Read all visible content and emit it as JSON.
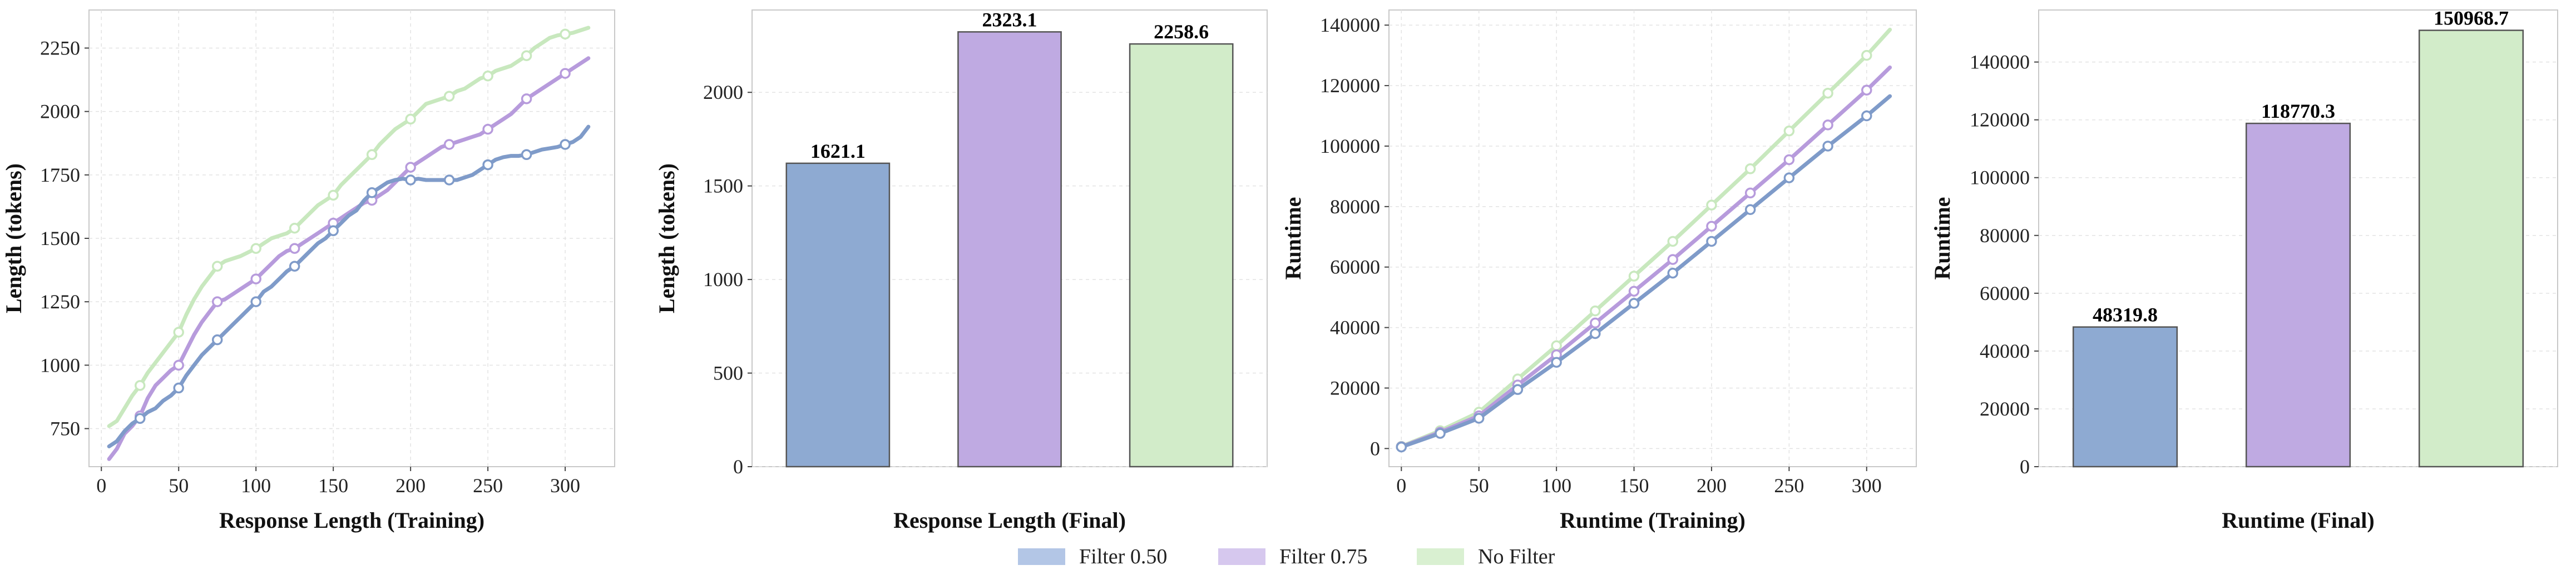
{
  "colors": {
    "filter_050": "#8eaad2",
    "filter_075": "#bfaae2",
    "no_filter": "#d2ecc9",
    "filter_050_line": "#7f9bc9",
    "filter_075_line": "#b79bdc",
    "no_filter_line": "#c8e8be"
  },
  "legend": {
    "items": [
      {
        "label": "Filter 0.50",
        "color": "#b3c6e6"
      },
      {
        "label": "Filter 0.75",
        "color": "#d6c8ee"
      },
      {
        "label": "No Filter",
        "color": "#d9f0d1"
      }
    ]
  },
  "chart_data": [
    {
      "type": "line",
      "xlabel": "Response Length (Training)",
      "ylabel": "Length (tokens)",
      "xlim": [
        -8,
        332
      ],
      "ylim": [
        600,
        2400
      ],
      "xticks": [
        0,
        50,
        100,
        150,
        200,
        250,
        300
      ],
      "yticks": [
        750,
        1000,
        1250,
        1500,
        1750,
        2000,
        2250
      ],
      "grid": true,
      "series": [
        {
          "name": "Filter 0.50",
          "x": [
            5,
            10,
            15,
            20,
            25,
            30,
            35,
            40,
            45,
            50,
            55,
            60,
            65,
            70,
            75,
            80,
            85,
            90,
            95,
            100,
            105,
            110,
            115,
            120,
            125,
            130,
            135,
            140,
            145,
            150,
            155,
            160,
            165,
            170,
            175,
            180,
            185,
            190,
            195,
            200,
            205,
            210,
            215,
            220,
            225,
            230,
            235,
            240,
            245,
            250,
            255,
            260,
            265,
            270,
            275,
            280,
            285,
            290,
            295,
            300,
            305,
            310,
            315
          ],
          "y": [
            680,
            700,
            740,
            770,
            790,
            815,
            830,
            860,
            880,
            910,
            960,
            1000,
            1040,
            1070,
            1100,
            1130,
            1160,
            1190,
            1220,
            1250,
            1290,
            1310,
            1340,
            1370,
            1390,
            1420,
            1450,
            1480,
            1500,
            1530,
            1560,
            1590,
            1610,
            1650,
            1680,
            1700,
            1720,
            1730,
            1735,
            1730,
            1735,
            1730,
            1730,
            1730,
            1730,
            1730,
            1740,
            1750,
            1770,
            1790,
            1810,
            1820,
            1825,
            1825,
            1830,
            1840,
            1850,
            1855,
            1860,
            1870,
            1880,
            1900,
            1940
          ],
          "markers_x": [
            25,
            50,
            75,
            100,
            125,
            150,
            175,
            200,
            225,
            250,
            275,
            300
          ]
        },
        {
          "name": "Filter 0.75",
          "x": [
            5,
            10,
            15,
            20,
            25,
            30,
            35,
            40,
            45,
            50,
            55,
            60,
            65,
            70,
            75,
            80,
            85,
            90,
            95,
            100,
            105,
            110,
            115,
            120,
            125,
            130,
            135,
            140,
            145,
            150,
            155,
            160,
            165,
            170,
            175,
            180,
            185,
            190,
            195,
            200,
            205,
            210,
            215,
            220,
            225,
            230,
            235,
            240,
            245,
            250,
            255,
            260,
            265,
            270,
            275,
            280,
            285,
            290,
            295,
            300,
            305,
            310,
            315
          ],
          "y": [
            630,
            670,
            730,
            760,
            800,
            870,
            920,
            950,
            980,
            1000,
            1060,
            1120,
            1170,
            1210,
            1250,
            1260,
            1280,
            1300,
            1320,
            1340,
            1370,
            1400,
            1430,
            1450,
            1460,
            1480,
            1500,
            1520,
            1540,
            1560,
            1580,
            1600,
            1620,
            1640,
            1650,
            1670,
            1690,
            1720,
            1750,
            1780,
            1800,
            1820,
            1840,
            1860,
            1870,
            1880,
            1890,
            1900,
            1910,
            1930,
            1950,
            1970,
            1990,
            2020,
            2050,
            2070,
            2090,
            2110,
            2130,
            2150,
            2170,
            2190,
            2210
          ],
          "markers_x": [
            25,
            50,
            75,
            100,
            125,
            150,
            175,
            200,
            225,
            250,
            275,
            300
          ]
        },
        {
          "name": "No Filter",
          "x": [
            5,
            10,
            15,
            20,
            25,
            30,
            35,
            40,
            45,
            50,
            55,
            60,
            65,
            70,
            75,
            80,
            85,
            90,
            95,
            100,
            105,
            110,
            115,
            120,
            125,
            130,
            135,
            140,
            145,
            150,
            155,
            160,
            165,
            170,
            175,
            180,
            185,
            190,
            195,
            200,
            205,
            210,
            215,
            220,
            225,
            230,
            235,
            240,
            245,
            250,
            255,
            260,
            265,
            270,
            275,
            280,
            285,
            290,
            295,
            300,
            305,
            310,
            315
          ],
          "y": [
            760,
            780,
            830,
            880,
            920,
            970,
            1010,
            1050,
            1090,
            1130,
            1200,
            1260,
            1310,
            1350,
            1390,
            1410,
            1420,
            1430,
            1445,
            1460,
            1480,
            1500,
            1510,
            1520,
            1540,
            1570,
            1600,
            1630,
            1650,
            1670,
            1710,
            1740,
            1770,
            1800,
            1830,
            1870,
            1900,
            1930,
            1950,
            1970,
            2000,
            2030,
            2040,
            2050,
            2060,
            2080,
            2090,
            2110,
            2130,
            2140,
            2160,
            2170,
            2180,
            2200,
            2220,
            2250,
            2270,
            2290,
            2300,
            2305,
            2310,
            2320,
            2330
          ],
          "markers_x": [
            25,
            50,
            75,
            100,
            125,
            150,
            175,
            200,
            225,
            250,
            275,
            300
          ]
        }
      ]
    },
    {
      "type": "bar",
      "xlabel": "Response Length (Final)",
      "ylabel": "Length (tokens)",
      "ylim": [
        0,
        2440
      ],
      "yticks": [
        0,
        500,
        1000,
        1500,
        2000
      ],
      "grid": true,
      "categories": [
        "Filter 0.50",
        "Filter 0.75",
        "No Filter"
      ],
      "values": [
        1621.1,
        2323.1,
        2258.6
      ],
      "value_labels": [
        "1621.1",
        "2323.1",
        "2258.6"
      ]
    },
    {
      "type": "line",
      "xlabel": "Runtime (Training)",
      "ylabel": "Runtime",
      "xlim": [
        -8,
        332
      ],
      "ylim": [
        -6000,
        145000
      ],
      "xticks": [
        0,
        50,
        100,
        150,
        200,
        250,
        300
      ],
      "yticks": [
        0,
        20000,
        40000,
        60000,
        80000,
        100000,
        120000,
        140000
      ],
      "grid": true,
      "series": [
        {
          "name": "Filter 0.50",
          "x": [
            0,
            25,
            50,
            75,
            100,
            125,
            150,
            175,
            200,
            225,
            250,
            275,
            300,
            315
          ],
          "y": [
            500,
            5000,
            10000,
            19500,
            28500,
            38000,
            48000,
            58000,
            68500,
            79000,
            89500,
            100000,
            110000,
            116500
          ],
          "markers_x": [
            0,
            25,
            50,
            75,
            100,
            125,
            150,
            175,
            200,
            225,
            250,
            275,
            300
          ]
        },
        {
          "name": "Filter 0.75",
          "x": [
            0,
            25,
            50,
            75,
            100,
            125,
            150,
            175,
            200,
            225,
            250,
            275,
            300,
            315
          ],
          "y": [
            600,
            5400,
            10800,
            21000,
            31000,
            41500,
            52000,
            62500,
            73500,
            84500,
            95500,
            107000,
            118500,
            126000
          ],
          "markers_x": [
            0,
            25,
            50,
            75,
            100,
            125,
            150,
            175,
            200,
            225,
            250,
            275,
            300
          ]
        },
        {
          "name": "No Filter",
          "x": [
            0,
            25,
            50,
            75,
            100,
            125,
            150,
            175,
            200,
            225,
            250,
            275,
            300,
            315
          ],
          "y": [
            700,
            5900,
            12000,
            23000,
            34000,
            45500,
            57000,
            68500,
            80500,
            92500,
            105000,
            117500,
            130000,
            138500
          ],
          "markers_x": [
            0,
            25,
            50,
            75,
            100,
            125,
            150,
            175,
            200,
            225,
            250,
            275,
            300
          ]
        }
      ]
    },
    {
      "type": "bar",
      "xlabel": "Runtime (Final)",
      "ylabel": "Runtime",
      "ylim": [
        0,
        158000
      ],
      "yticks": [
        0,
        20000,
        40000,
        60000,
        80000,
        100000,
        120000,
        140000
      ],
      "grid": true,
      "categories": [
        "Filter 0.50",
        "Filter 0.75",
        "No Filter"
      ],
      "values": [
        48319.8,
        118770.3,
        150968.7
      ],
      "value_labels": [
        "48319.8",
        "118770.3",
        "150968.7"
      ]
    }
  ]
}
